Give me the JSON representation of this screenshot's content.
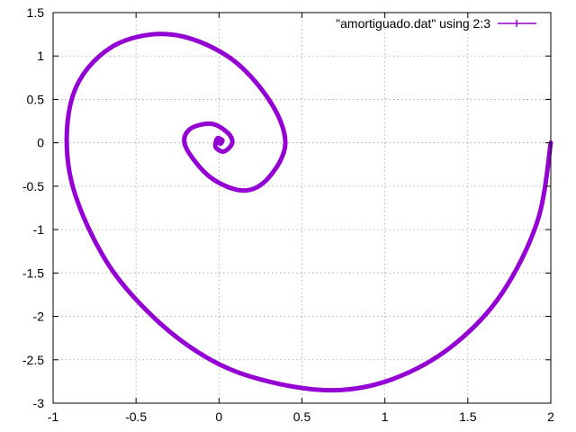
{
  "chart_data": {
    "type": "line",
    "legend_label": "\"amortiguado.dat\" using 2:3",
    "legend_position": "top-right",
    "color": "#9400d3",
    "grid": true,
    "xlim": [
      -1,
      2
    ],
    "ylim": [
      -3,
      1.5
    ],
    "x_ticks": [
      -1,
      -0.5,
      0,
      0.5,
      1,
      1.5,
      2
    ],
    "y_ticks": [
      -3,
      -2.5,
      -2,
      -1.5,
      -1,
      -0.5,
      0,
      0.5,
      1,
      1.5
    ],
    "x_tick_labels": [
      "-1",
      "-0.5",
      "0",
      "0.5",
      "1",
      "1.5",
      "2"
    ],
    "y_tick_labels": [
      "-3",
      "-2.5",
      "-2",
      "-1.5",
      "-1",
      "-0.5",
      "0",
      "0.5",
      "1",
      "1.5"
    ],
    "series": [
      {
        "name": "\"amortiguado.dat\" using 2:3",
        "x": [
          2.0,
          1.92,
          1.7,
          1.4,
          1.05,
          0.7,
          0.3,
          -0.05,
          -0.4,
          -0.7,
          -0.9,
          -0.88,
          -0.65,
          -0.3,
          0.05,
          0.3,
          0.4,
          0.3,
          0.15,
          -0.05,
          -0.2,
          -0.18,
          -0.05,
          0.05,
          0.08,
          0.03,
          -0.02,
          -0.01,
          0.02,
          0.01,
          0.0
        ],
        "y": [
          0.0,
          -0.9,
          -1.75,
          -2.35,
          -2.72,
          -2.85,
          -2.75,
          -2.5,
          -2.0,
          -1.3,
          -0.35,
          0.55,
          1.1,
          1.25,
          1.0,
          0.5,
          0.0,
          -0.4,
          -0.55,
          -0.4,
          -0.05,
          0.15,
          0.22,
          0.12,
          0.0,
          -0.1,
          -0.05,
          0.05,
          0.03,
          -0.01,
          0.0
        ]
      }
    ]
  }
}
